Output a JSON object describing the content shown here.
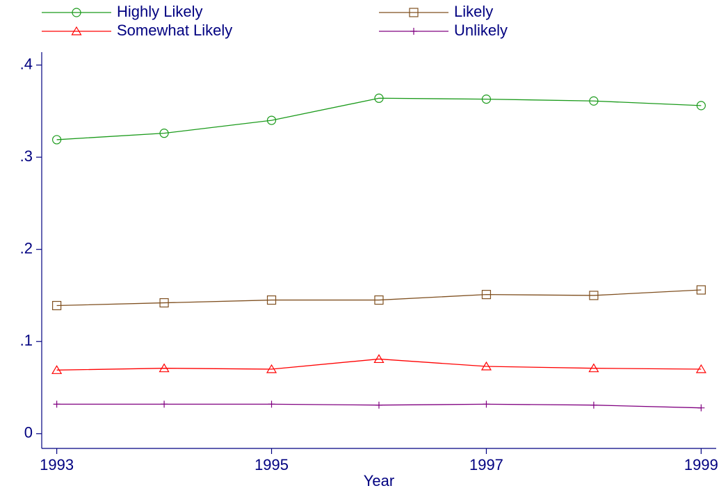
{
  "chart_data": {
    "type": "line",
    "x_label": "Year",
    "x": [
      1993,
      1994,
      1995,
      1996,
      1997,
      1998,
      1999
    ],
    "xlim": [
      1992.86,
      1999.14
    ],
    "xticks": [
      1993,
      1995,
      1997,
      1999
    ],
    "ylim": [
      -0.016,
      0.414
    ],
    "yticks": [
      0,
      {
        "value": 0.1,
        "label": ".1"
      },
      {
        "value": 0.2,
        "label": ".2"
      },
      {
        "value": 0.3,
        "label": ".3"
      },
      {
        "value": 0.4,
        "label": ".4"
      }
    ],
    "axis_color": "#000080",
    "series": [
      {
        "name": "Highly Likely",
        "color": "#1a9a1a",
        "marker": "circle",
        "values": [
          0.319,
          0.326,
          0.34,
          0.364,
          0.363,
          0.361,
          0.356
        ]
      },
      {
        "name": "Likely",
        "color": "#7f4f1f",
        "marker": "square",
        "values": [
          0.139,
          0.142,
          0.145,
          0.145,
          0.151,
          0.15,
          0.156
        ]
      },
      {
        "name": "Somewhat Likely",
        "color": "#ff0000",
        "marker": "triangle",
        "values": [
          0.069,
          0.071,
          0.07,
          0.081,
          0.073,
          0.071,
          0.07
        ]
      },
      {
        "name": "Unlikely",
        "color": "#800080",
        "marker": "plus",
        "values": [
          0.032,
          0.032,
          0.032,
          0.031,
          0.032,
          0.031,
          0.028
        ]
      }
    ]
  }
}
